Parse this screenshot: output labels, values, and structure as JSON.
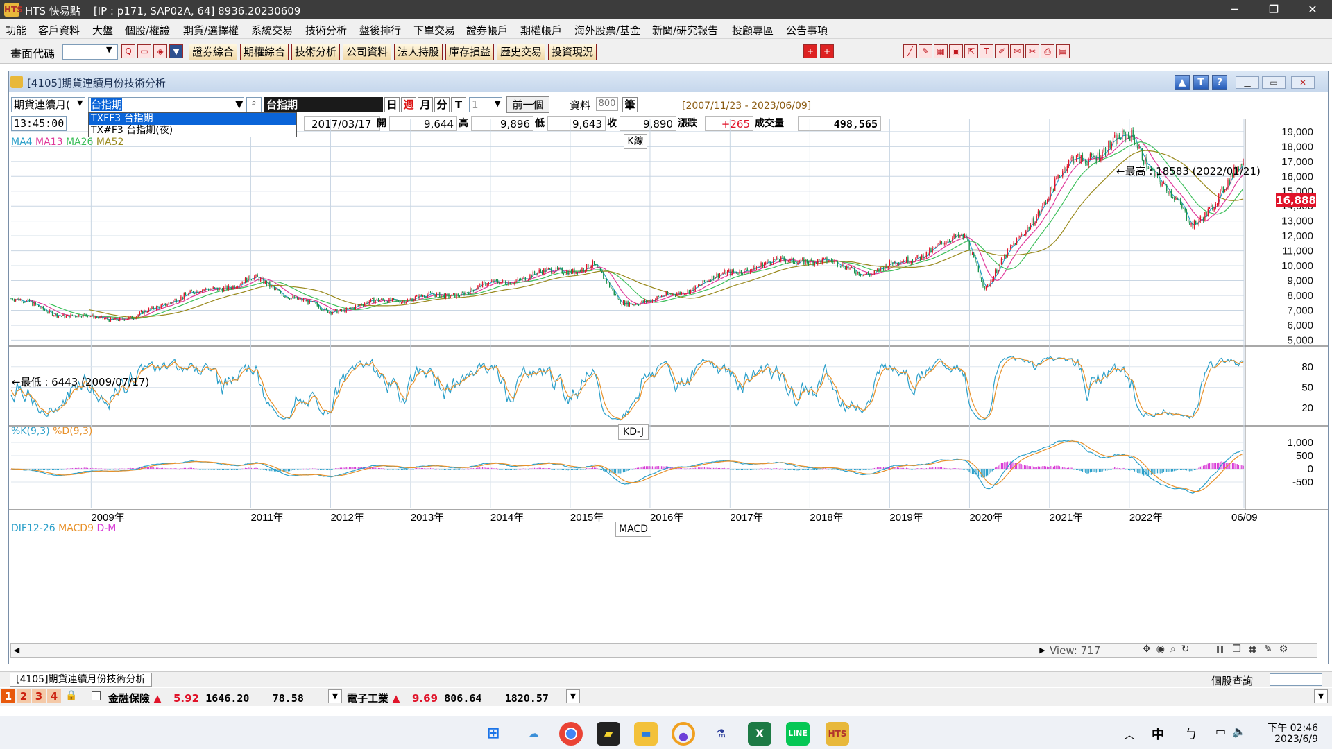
{
  "app": {
    "title": "HTS 快易點",
    "connection": "[IP : p171, SAP02A, 64] 8936.20230609",
    "logo": "HTS"
  },
  "window_controls": {
    "minimize": "─",
    "maximize": "❐",
    "close": "✕"
  },
  "menu": [
    "功能",
    "客戶資料",
    "大盤",
    "個股/權證",
    "期貨/選擇權",
    "系統交易",
    "技術分析",
    "盤後排行",
    "下單交易",
    "證券帳戶",
    "期權帳戶",
    "海外股票/基金",
    "新聞/研究報告",
    "投顧專區",
    "公告事項"
  ],
  "toolbar": {
    "code_label": "畫面代碼",
    "code_value": "",
    "buttons": [
      "證券綜合",
      "期權綜合",
      "技術分析",
      "公司資料",
      "法人持股",
      "庫存損益",
      "歷史交易",
      "投資現況"
    ]
  },
  "subwindow": {
    "title": "[4105]期貨連續月份技術分析"
  },
  "controls": {
    "contract_type": "期貨連續月(",
    "symbol_input": "台指期",
    "symbol_name": "台指期",
    "period_buttons": [
      "日",
      "週",
      "月",
      "分",
      "T"
    ],
    "interval_value": "1",
    "prev_button": "前一個",
    "data_label": "資料",
    "data_count": "800",
    "data_unit": "筆",
    "date_range": "[2007/11/23 - 2023/06/09]"
  },
  "dropdown": {
    "options": [
      "TXFF3 台指期",
      "TX#F3 台指期(夜)"
    ],
    "selected_index": 0
  },
  "quote": {
    "time": "13:45:00",
    "date": "2017/03/17",
    "open_label": "開",
    "open": "9,644",
    "high_label": "高",
    "high": "9,896",
    "low_label": "低",
    "low": "9,643",
    "close_label": "收",
    "close": "9,890",
    "change_label": "漲跌",
    "change": "+265",
    "volume_label": "成交量",
    "volume": "498,565"
  },
  "panels": {
    "k": {
      "legend": [
        "MA4",
        "MA13",
        "MA26",
        "MA52"
      ],
      "legend_colors": [
        "#2a9fc9",
        "#e0389a",
        "#3dbf5b",
        "#9a8a1e"
      ],
      "title": "K線",
      "max_annotation": "最高 : 18583 (2022/01/21)",
      "min_annotation": "最低 : 6443 (2009/07/17)",
      "last_price": "16,888",
      "y_ticks": [
        "19,000",
        "18,000",
        "17,000",
        "16,000",
        "15,000",
        "14,000",
        "13,000",
        "12,000",
        "11,000",
        "10,000",
        "9,000",
        "8,000",
        "7,000",
        "6,000",
        "5,000"
      ]
    },
    "kd": {
      "legend": [
        "%K(9,3)",
        "%D(9,3)"
      ],
      "legend_colors": [
        "#2a9fc9",
        "#e8912a"
      ],
      "title": "KD-J",
      "y_ticks": [
        "80",
        "50",
        "20"
      ]
    },
    "macd": {
      "legend": [
        "DIF12-26",
        "MACD9",
        "D-M"
      ],
      "legend_colors": [
        "#2a9fc9",
        "#e8912a",
        "#d93ad6"
      ],
      "title": "MACD",
      "y_ticks": [
        "1,000",
        "500",
        "0",
        "-500"
      ]
    }
  },
  "x_labels": [
    "2009年",
    "2011年",
    "2012年",
    "2013年",
    "2014年",
    "2015年",
    "2016年",
    "2017年",
    "2018年",
    "2019年",
    "2020年",
    "2021年",
    "2022年",
    "06/09"
  ],
  "chart_data": {
    "type": "candlestick",
    "title": "K線",
    "period": "週",
    "x_range": [
      "2007/11/23",
      "2023/06/09"
    ],
    "ylim": [
      5000,
      19000
    ],
    "close_anchors": [
      [
        "2008-09",
        6600
      ],
      [
        "2009-07",
        6443
      ],
      [
        "2010-01",
        7800
      ],
      [
        "2011-01",
        9100
      ],
      [
        "2011-12",
        6900
      ],
      [
        "2012-09",
        7700
      ],
      [
        "2013-06",
        8000
      ],
      [
        "2014-06",
        9300
      ],
      [
        "2015-04",
        10000
      ],
      [
        "2015-08",
        7600
      ],
      [
        "2016-01",
        7600
      ],
      [
        "2017-03",
        9890
      ],
      [
        "2017-12",
        10500
      ],
      [
        "2018-10",
        9500
      ],
      [
        "2019-12",
        12000
      ],
      [
        "2020-03",
        8500
      ],
      [
        "2020-12",
        14500
      ],
      [
        "2021-04",
        17000
      ],
      [
        "2022-01",
        18583
      ],
      [
        "2022-10",
        12600
      ],
      [
        "2023-06",
        16888
      ]
    ],
    "max": {
      "value": 18583,
      "date": "2022/01/21"
    },
    "min": {
      "value": 6443,
      "date": "2009/07/17"
    },
    "last": 16888
  },
  "scroll": {
    "view_label": "View:",
    "view_value": "717"
  },
  "status": {
    "tab": "[4105]期貨連續月份技術分析",
    "query_label": "個股查詢"
  },
  "ticker": {
    "pages": [
      "1",
      "2",
      "3",
      "4"
    ],
    "item1": {
      "name": "金融保險",
      "change": "5.92",
      "value": "1646.20",
      "volume": "78.58"
    },
    "item2": {
      "name": "電子工業",
      "change": "9.69",
      "value": "806.64",
      "volume": "1820.57"
    }
  },
  "taskbar": {
    "time": "下午 02:46",
    "date": "2023/6/9",
    "ime": "中",
    "apps": [
      "start",
      "weather",
      "chrome",
      "notes",
      "explorer",
      "photos",
      "science",
      "excel",
      "line",
      "hts"
    ]
  }
}
